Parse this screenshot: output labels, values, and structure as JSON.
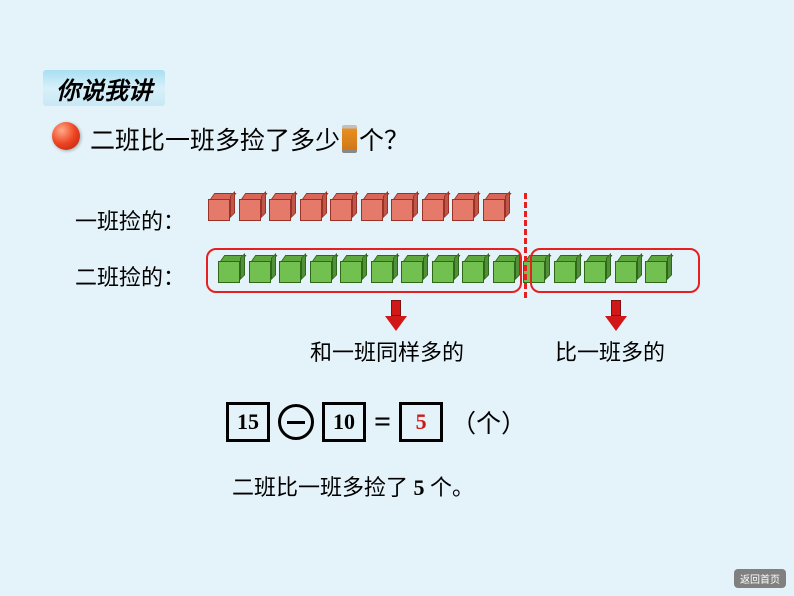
{
  "header": {
    "title": "你说我讲"
  },
  "question": {
    "text_before": "二班比一班多捡了多少",
    "text_after": "个？"
  },
  "rows": {
    "row1_label": "一班捡的：",
    "row2_label": "二班捡的：",
    "row1_count": 10,
    "row2_left_count": 10,
    "row2_right_count": 5,
    "row1_color": "red",
    "row2_color": "green"
  },
  "annotations": {
    "same": "和一班同样多的",
    "more": "比一班多的"
  },
  "equation": {
    "operand1": "15",
    "operand2": "10",
    "result": "5",
    "unit": "（个）",
    "equals": "="
  },
  "conclusion": {
    "prefix": "二班比一班多捡了 ",
    "value": "5",
    "suffix": " 个。"
  },
  "back_button": "返回首页",
  "styling": {
    "background": "#e4f2f9",
    "divider_color": "#e62020",
    "border_color": "#e62020",
    "arrow_color": "#d01818",
    "result_color": "#d01818",
    "cube_red": {
      "front": "#e67a6a",
      "top": "#d96658",
      "side": "#c05548",
      "border": "#993328"
    },
    "cube_green": {
      "front": "#72c050",
      "top": "#5fa840",
      "side": "#4f9038",
      "border": "#2f6818"
    },
    "header_gradient": [
      "#a8dff3",
      "#d8f0f9",
      "#c8e8f5"
    ],
    "sphere_colors": [
      "#ffaa88",
      "#ee4422",
      "#aa2211"
    ],
    "question_fontsize": 25,
    "label_fontsize": 22,
    "equation_fontsize": 22,
    "box_border": "#000000"
  }
}
